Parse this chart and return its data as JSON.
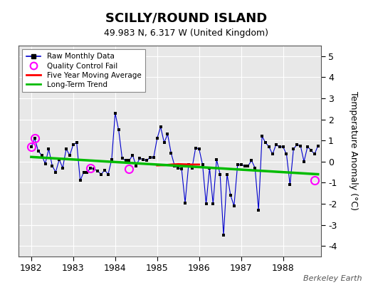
{
  "title": "SCILLY/ROUND ISLAND",
  "subtitle": "49.983 N, 6.317 W (United Kingdom)",
  "ylabel": "Temperature Anomaly (°C)",
  "credit": "Berkeley Earth",
  "ylim": [
    -4.5,
    5.5
  ],
  "xlim": [
    1981.7,
    1988.9
  ],
  "xticks": [
    1982,
    1983,
    1984,
    1985,
    1986,
    1987,
    1988
  ],
  "yticks": [
    -4,
    -3,
    -2,
    -1,
    0,
    1,
    2,
    3,
    4,
    5
  ],
  "bg_color": "#e8e8e8",
  "raw_x": [
    1982.0,
    1982.083,
    1982.167,
    1982.25,
    1982.333,
    1982.417,
    1982.5,
    1982.583,
    1982.667,
    1982.75,
    1982.833,
    1982.917,
    1983.0,
    1983.083,
    1983.167,
    1983.25,
    1983.333,
    1983.417,
    1983.5,
    1983.583,
    1983.667,
    1983.75,
    1983.833,
    1983.917,
    1984.0,
    1984.083,
    1984.167,
    1984.25,
    1984.333,
    1984.417,
    1984.5,
    1984.583,
    1984.667,
    1984.75,
    1984.833,
    1984.917,
    1985.0,
    1985.083,
    1985.167,
    1985.25,
    1985.333,
    1985.417,
    1985.5,
    1985.583,
    1985.667,
    1985.75,
    1985.833,
    1985.917,
    1986.0,
    1986.083,
    1986.167,
    1986.25,
    1986.333,
    1986.417,
    1986.5,
    1986.583,
    1986.667,
    1986.75,
    1986.833,
    1986.917,
    1987.0,
    1987.083,
    1987.167,
    1987.25,
    1987.333,
    1987.417,
    1987.5,
    1987.583,
    1987.667,
    1987.75,
    1987.833,
    1987.917,
    1988.0,
    1988.083,
    1988.167,
    1988.25,
    1988.333,
    1988.417,
    1988.5,
    1988.583,
    1988.667,
    1988.75,
    1988.833
  ],
  "raw_y": [
    0.7,
    1.1,
    0.5,
    0.3,
    -0.1,
    0.6,
    -0.2,
    -0.5,
    0.1,
    -0.3,
    0.6,
    0.3,
    0.8,
    0.9,
    -0.9,
    -0.5,
    -0.5,
    -0.3,
    -0.35,
    -0.45,
    -0.6,
    -0.4,
    -0.6,
    0.1,
    2.3,
    1.5,
    0.15,
    0.05,
    0.05,
    0.3,
    -0.2,
    0.15,
    0.1,
    0.05,
    0.2,
    0.2,
    1.1,
    1.65,
    0.9,
    1.3,
    0.4,
    -0.2,
    -0.3,
    -0.35,
    -1.95,
    -0.15,
    -0.3,
    0.65,
    0.6,
    -0.15,
    -2.0,
    -0.3,
    -2.0,
    0.1,
    -0.6,
    -3.5,
    -0.6,
    -1.6,
    -2.1,
    -0.15,
    -0.15,
    -0.2,
    -0.2,
    0.05,
    -0.3,
    -2.3,
    1.2,
    0.9,
    0.7,
    0.35,
    0.8,
    0.7,
    0.7,
    0.35,
    -1.1,
    0.6,
    0.8,
    0.75,
    0.0,
    0.7,
    0.55,
    0.35,
    0.75
  ],
  "qc_fail_x": [
    1982.0,
    1982.083,
    1983.417,
    1984.333,
    1988.75
  ],
  "qc_fail_y": [
    0.7,
    1.1,
    -0.3,
    -0.35,
    -0.9
  ],
  "ma_x": [
    1985.0,
    1985.167,
    1985.333,
    1985.5,
    1985.667,
    1985.833,
    1986.0
  ],
  "ma_y": [
    -0.18,
    -0.17,
    -0.14,
    -0.12,
    -0.13,
    -0.14,
    -0.14
  ],
  "trend_x": [
    1982.0,
    1988.833
  ],
  "trend_y": [
    0.22,
    -0.6
  ],
  "line_color": "#0000cd",
  "marker_color": "#000000",
  "qc_color": "#ff00ff",
  "ma_color": "#ff0000",
  "trend_color": "#00bb00"
}
